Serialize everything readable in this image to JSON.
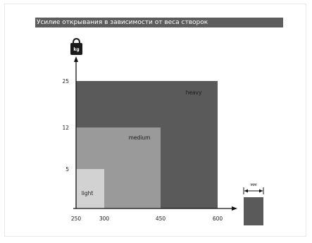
{
  "title": "Усилие открывания в зависимости от веса створок",
  "weight_icon": {
    "name": "weight-kg-icon",
    "label": "kg"
  },
  "width_icon": {
    "name": "door-leaf-width-icon",
    "label": "мм"
  },
  "colors": {
    "heavy": "#5a5a5a",
    "medium": "#9a9a9a",
    "light": "#d2d2d2",
    "axis": "#111111",
    "title_bg": "#5d5d5d"
  },
  "chart_data": {
    "type": "area",
    "title": "Усилие открывания в зависимости от веса створок",
    "xlabel": "",
    "ylabel": "",
    "x_ticks": [
      "250",
      "300",
      "450",
      "600"
    ],
    "y_ticks": [
      "5",
      "12",
      "25"
    ],
    "x_tick_values": [
      250,
      300,
      450,
      600
    ],
    "y_tick_values": [
      5,
      12,
      25
    ],
    "categories": [
      {
        "name": "heavy",
        "x_max": 600,
        "y_max": 25
      },
      {
        "name": "medium",
        "x_max": 450,
        "y_max": 12
      },
      {
        "name": "light",
        "x_max": 300,
        "y_max": 5
      }
    ],
    "xlim": [
      250,
      600
    ],
    "ylim": [
      0,
      25
    ],
    "grid": false
  }
}
